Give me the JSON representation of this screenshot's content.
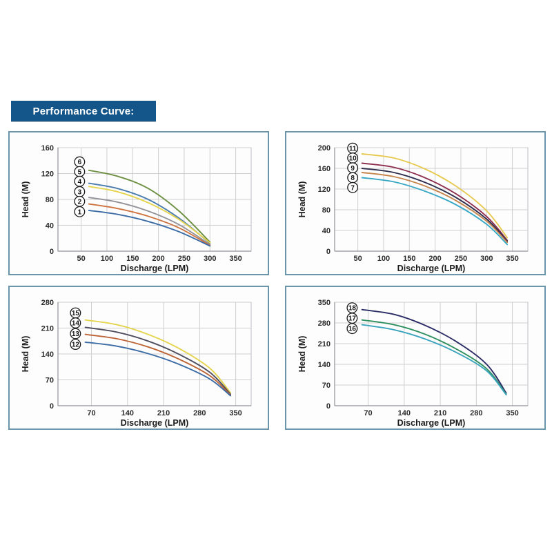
{
  "header": {
    "title": "Performance Curve:",
    "bg_color": "#15568a",
    "text_color": "#ffffff"
  },
  "colors": {
    "panel_border": "#6b96aa",
    "grid": "#cfcfcf",
    "plot_border": "#b9bdc2",
    "axis_line": "#8e9298",
    "tick_text": "#2b2b2b",
    "label_circle_stroke": "#1a1a1a",
    "label_circle_fill": "#ffffff"
  },
  "chart_data": [
    {
      "type": "line",
      "title": "Performance curves models 1-6",
      "xlabel": "Discharge (LPM)",
      "ylabel": "Head (M)",
      "xlim": [
        5,
        380
      ],
      "ylim": [
        0,
        160
      ],
      "xticks": [
        50,
        100,
        150,
        200,
        250,
        300,
        350
      ],
      "yticks": [
        0,
        40,
        80,
        120,
        160
      ],
      "grid": "on",
      "legend_position": "circled-numbers-left",
      "series": [
        {
          "name": "6",
          "color": "#6d8f41",
          "x": [
            65,
            120,
            180,
            240,
            300
          ],
          "y": [
            125,
            116,
            97,
            62,
            14
          ],
          "label_pos": [
            47,
            138
          ]
        },
        {
          "name": "5",
          "color": "#4a7cae",
          "x": [
            65,
            120,
            180,
            240,
            300
          ],
          "y": [
            105,
            97,
            80,
            51,
            12
          ],
          "label_pos": [
            47,
            123
          ]
        },
        {
          "name": "4",
          "color": "#e5d44e",
          "x": [
            65,
            120,
            180,
            240,
            300
          ],
          "y": [
            100,
            92,
            75,
            49,
            13
          ],
          "label_pos": [
            47,
            108
          ]
        },
        {
          "name": "3",
          "color": "#939399",
          "x": [
            65,
            120,
            180,
            240,
            300
          ],
          "y": [
            83,
            76,
            62,
            41,
            10
          ],
          "label_pos": [
            47,
            92
          ]
        },
        {
          "name": "2",
          "color": "#cd7440",
          "x": [
            65,
            120,
            180,
            240,
            300
          ],
          "y": [
            73,
            66,
            54,
            36,
            9
          ],
          "label_pos": [
            47,
            77
          ]
        },
        {
          "name": "1",
          "color": "#3b6ba5",
          "x": [
            65,
            120,
            180,
            240,
            300
          ],
          "y": [
            63,
            57,
            46,
            30,
            8
          ],
          "label_pos": [
            47,
            61
          ]
        }
      ]
    },
    {
      "type": "line",
      "title": "Performance curves models 7-11",
      "xlabel": "Discharge (LPM)",
      "ylabel": "Head (M)",
      "xlim": [
        5,
        380
      ],
      "ylim": [
        0,
        200
      ],
      "xticks": [
        50,
        100,
        150,
        200,
        250,
        300,
        350
      ],
      "yticks": [
        0,
        40,
        80,
        120,
        160,
        200
      ],
      "grid": "on",
      "legend_position": "circled-numbers-left",
      "series": [
        {
          "name": "11",
          "color": "#e6c94e",
          "x": [
            58,
            120,
            180,
            240,
            300,
            340
          ],
          "y": [
            188,
            180,
            159,
            126,
            78,
            26
          ],
          "label_pos": [
            40,
            199
          ]
        },
        {
          "name": "10",
          "color": "#8e3050",
          "x": [
            58,
            120,
            180,
            240,
            300,
            340
          ],
          "y": [
            170,
            162,
            142,
            111,
            67,
            21
          ],
          "label_pos": [
            40,
            180
          ]
        },
        {
          "name": "9",
          "color": "#2e2e4e",
          "x": [
            58,
            120,
            180,
            240,
            300,
            340
          ],
          "y": [
            160,
            152,
            133,
            104,
            62,
            19
          ],
          "label_pos": [
            40,
            161
          ]
        },
        {
          "name": "8",
          "color": "#c5854d",
          "x": [
            58,
            120,
            180,
            240,
            300,
            340
          ],
          "y": [
            152,
            144,
            126,
            98,
            58,
            17
          ],
          "label_pos": [
            40,
            142
          ]
        },
        {
          "name": "7",
          "color": "#38a7c6",
          "x": [
            58,
            120,
            180,
            240,
            300,
            340
          ],
          "y": [
            142,
            134,
            116,
            90,
            52,
            13
          ],
          "label_pos": [
            40,
            123
          ]
        }
      ]
    },
    {
      "type": "line",
      "title": "Performance curves models 12-15",
      "xlabel": "Discharge (LPM)",
      "ylabel": "Head (M)",
      "xlim": [
        5,
        380
      ],
      "ylim": [
        0,
        280
      ],
      "xticks": [
        70,
        140,
        210,
        280,
        350
      ],
      "yticks": [
        0,
        70,
        140,
        210,
        280
      ],
      "grid": "on",
      "legend_position": "circled-numbers-left",
      "series": [
        {
          "name": "15",
          "color": "#e5d44e",
          "x": [
            58,
            120,
            180,
            240,
            300,
            340
          ],
          "y": [
            232,
            219,
            193,
            155,
            101,
            35
          ],
          "label_pos": [
            39,
            251
          ]
        },
        {
          "name": "14",
          "color": "#4e4e5e",
          "x": [
            58,
            120,
            180,
            240,
            300,
            340
          ],
          "y": [
            212,
            199,
            175,
            139,
            90,
            31
          ],
          "label_pos": [
            39,
            224
          ]
        },
        {
          "name": "13",
          "color": "#bc6335",
          "x": [
            58,
            120,
            180,
            240,
            300,
            340
          ],
          "y": [
            193,
            181,
            159,
            126,
            81,
            29
          ],
          "label_pos": [
            39,
            195
          ]
        },
        {
          "name": "12",
          "color": "#3b6ba5",
          "x": [
            58,
            120,
            180,
            240,
            300,
            340
          ],
          "y": [
            172,
            161,
            141,
            112,
            72,
            27
          ],
          "label_pos": [
            39,
            166
          ]
        }
      ]
    },
    {
      "type": "line",
      "title": "Performance curves models 16-18",
      "xlabel": "Discharge (LPM)",
      "ylabel": "Head (M)",
      "xlim": [
        5,
        380
      ],
      "ylim": [
        0,
        350
      ],
      "xticks": [
        70,
        140,
        210,
        280,
        350
      ],
      "yticks": [
        0,
        70,
        140,
        210,
        280,
        350
      ],
      "grid": "on",
      "legend_position": "circled-numbers-left",
      "series": [
        {
          "name": "18",
          "color": "#2b2b66",
          "x": [
            58,
            120,
            180,
            240,
            300,
            338
          ],
          "y": [
            325,
            309,
            272,
            218,
            140,
            43
          ],
          "label_pos": [
            39,
            331
          ]
        },
        {
          "name": "17",
          "color": "#2f8f5f",
          "x": [
            58,
            120,
            180,
            240,
            300,
            338
          ],
          "y": [
            290,
            274,
            242,
            193,
            125,
            39
          ],
          "label_pos": [
            39,
            296
          ]
        },
        {
          "name": "16",
          "color": "#3aa3bd",
          "x": [
            58,
            120,
            180,
            240,
            300,
            338
          ],
          "y": [
            274,
            257,
            226,
            181,
            118,
            37
          ],
          "label_pos": [
            39,
            261
          ]
        }
      ]
    }
  ]
}
